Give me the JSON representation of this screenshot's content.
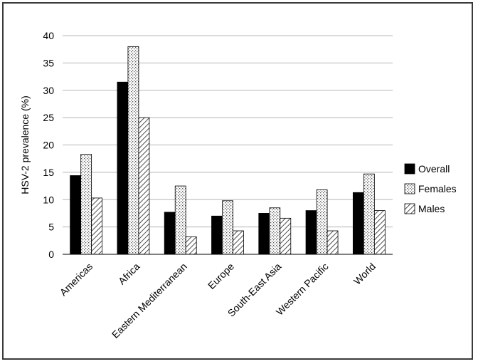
{
  "chart_data": {
    "type": "bar",
    "title": "",
    "xlabel": "",
    "ylabel": "HSV-2 prevalence (%)",
    "ylim": [
      0,
      40
    ],
    "yticks": [
      0,
      5,
      10,
      15,
      20,
      25,
      30,
      35,
      40
    ],
    "grid": "horizontal",
    "legend_position": "right",
    "categories": [
      "Americas",
      "Africa",
      "Eastern Mediterranean",
      "Europe",
      "South-East Asia",
      "Western Pacific",
      "World"
    ],
    "series": [
      {
        "name": "Overall",
        "pattern": "solid-black",
        "values": [
          14.4,
          31.5,
          7.7,
          7.0,
          7.5,
          8.0,
          11.3
        ]
      },
      {
        "name": "Females",
        "pattern": "dotted",
        "values": [
          18.3,
          38.0,
          12.5,
          9.8,
          8.5,
          11.8,
          14.7
        ]
      },
      {
        "name": "Males",
        "pattern": "diagonal-hatch",
        "values": [
          10.3,
          25.0,
          3.2,
          4.3,
          6.6,
          4.3,
          8.0
        ]
      }
    ]
  }
}
